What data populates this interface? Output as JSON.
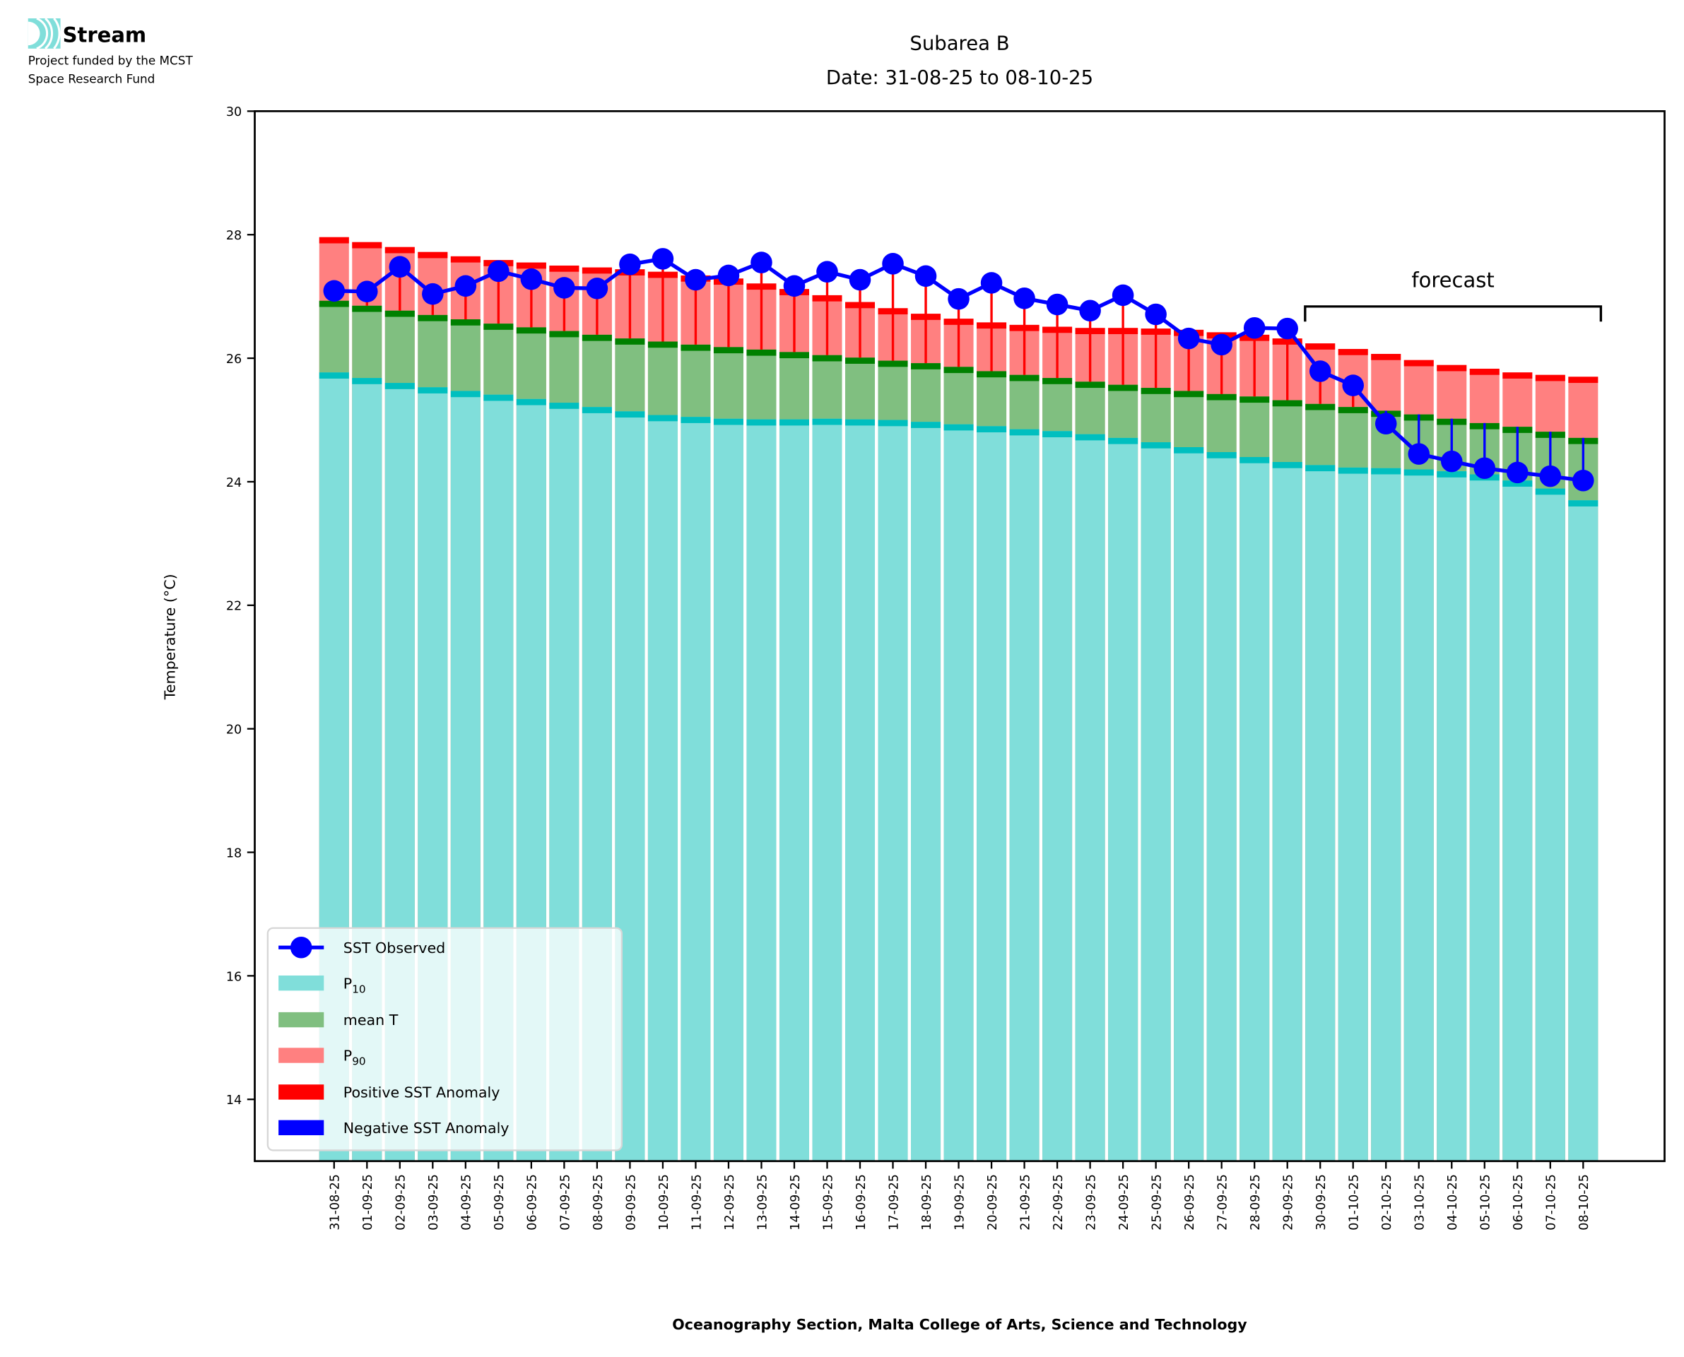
{
  "logo": {
    "name": "Stream",
    "line1": "Project funded by the MCST",
    "line2": "Space Research Fund"
  },
  "chart_data": {
    "type": "bar",
    "title": "Subarea B",
    "subtitle": "Date: 31-08-25 to 08-10-25",
    "xlabel": "Oceanography Section, Malta College of Arts, Science and Technology",
    "ylabel": "Temperature (°C)",
    "ylim": [
      13,
      30
    ],
    "yticks": [
      "14",
      "16",
      "18",
      "20",
      "22",
      "24",
      "26",
      "28",
      "30"
    ],
    "grid": false,
    "legend_placement": "lower-left",
    "annotation": "forecast",
    "forecast_start_index": 30,
    "categories": [
      "31-08-25",
      "01-09-25",
      "02-09-25",
      "03-09-25",
      "04-09-25",
      "05-09-25",
      "06-09-25",
      "07-09-25",
      "08-09-25",
      "09-09-25",
      "10-09-25",
      "11-09-25",
      "12-09-25",
      "13-09-25",
      "14-09-25",
      "15-09-25",
      "16-09-25",
      "17-09-25",
      "18-09-25",
      "19-09-25",
      "20-09-25",
      "21-09-25",
      "22-09-25",
      "23-09-25",
      "24-09-25",
      "25-09-25",
      "26-09-25",
      "27-09-25",
      "28-09-25",
      "29-09-25",
      "30-09-25",
      "01-10-25",
      "02-10-25",
      "03-10-25",
      "04-10-25",
      "05-10-25",
      "06-10-25",
      "07-10-25",
      "08-10-25"
    ],
    "series": [
      {
        "name": "P10",
        "label": "P",
        "sub": "10",
        "color": "#80deda",
        "cap_color": "#00bfbf",
        "values": [
          25.77,
          25.68,
          25.6,
          25.53,
          25.47,
          25.41,
          25.34,
          25.28,
          25.21,
          25.14,
          25.08,
          25.05,
          25.02,
          25.01,
          25.01,
          25.02,
          25.01,
          25.0,
          24.97,
          24.93,
          24.9,
          24.85,
          24.82,
          24.77,
          24.71,
          24.64,
          24.56,
          24.48,
          24.4,
          24.32,
          24.27,
          24.23,
          24.22,
          24.2,
          24.17,
          24.12,
          24.02,
          23.89,
          23.7
        ]
      },
      {
        "name": "mean T",
        "label": "mean T",
        "sub": "",
        "color": "#80bf80",
        "cap_color": "#008000",
        "values": [
          26.93,
          26.85,
          26.77,
          26.7,
          26.63,
          26.56,
          26.5,
          26.44,
          26.38,
          26.32,
          26.27,
          26.22,
          26.18,
          26.14,
          26.1,
          26.05,
          26.01,
          25.96,
          25.92,
          25.86,
          25.79,
          25.73,
          25.68,
          25.62,
          25.57,
          25.52,
          25.47,
          25.42,
          25.38,
          25.32,
          25.26,
          25.21,
          25.15,
          25.09,
          25.02,
          24.95,
          24.89,
          24.81,
          24.71
        ]
      },
      {
        "name": "P90",
        "label": "P",
        "sub": "90",
        "color": "#ff8080",
        "cap_color": "#ff0000",
        "values": [
          27.96,
          27.88,
          27.8,
          27.72,
          27.65,
          27.59,
          27.55,
          27.5,
          27.47,
          27.44,
          27.4,
          27.34,
          27.29,
          27.21,
          27.12,
          27.02,
          26.91,
          26.81,
          26.72,
          26.64,
          26.58,
          26.54,
          26.51,
          26.49,
          26.49,
          26.48,
          26.46,
          26.42,
          26.38,
          26.32,
          26.24,
          26.15,
          26.07,
          25.97,
          25.89,
          25.83,
          25.77,
          25.73,
          25.7
        ]
      },
      {
        "name": "SST Observed",
        "label": "SST Observed",
        "sub": "",
        "color": "#0000ff",
        "values": [
          27.09,
          27.08,
          27.48,
          27.04,
          27.17,
          27.41,
          27.28,
          27.14,
          27.13,
          27.52,
          27.61,
          27.27,
          27.34,
          27.55,
          27.17,
          27.4,
          27.27,
          27.53,
          27.33,
          26.96,
          27.22,
          26.97,
          26.87,
          26.77,
          27.02,
          26.71,
          26.32,
          26.22,
          26.49,
          26.48,
          25.79,
          25.56,
          24.94,
          24.45,
          24.33,
          24.22,
          24.15,
          24.09,
          24.02
        ]
      }
    ],
    "anomaly_legend": [
      {
        "label": "Positive SST Anomaly",
        "color": "#ff0000"
      },
      {
        "label": "Negative SST Anomaly",
        "color": "#0000ff"
      }
    ]
  }
}
